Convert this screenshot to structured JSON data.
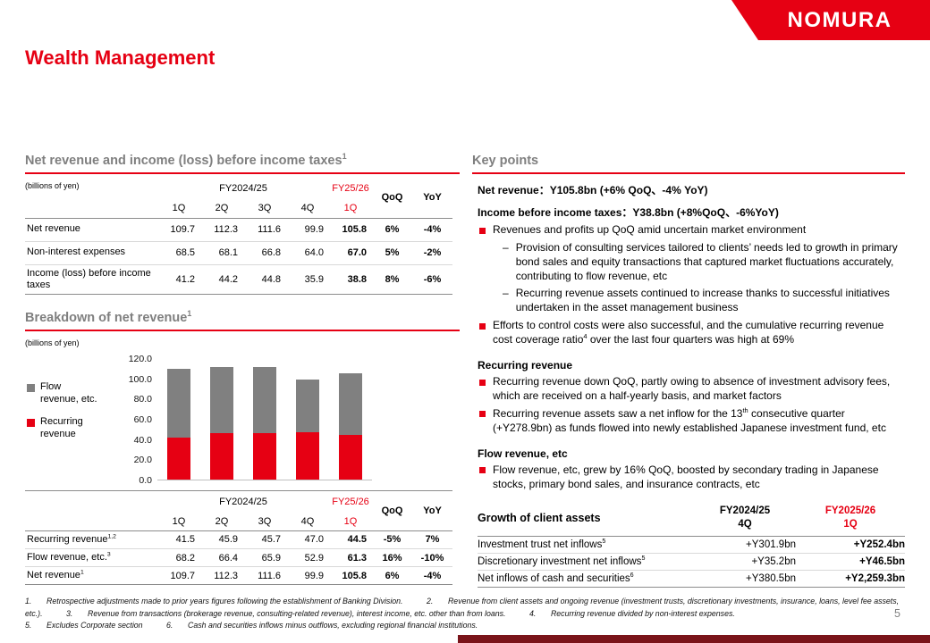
{
  "brand": {
    "logo": "NOMURA",
    "page_number": "5"
  },
  "title": "Wealth Management",
  "colors": {
    "brand_red": "#e60013",
    "heading_gray": "#7f7f7f",
    "bar_gray": "#808080",
    "footer_maroon": "#7a141a"
  },
  "left": {
    "section1": {
      "heading": "Net revenue and income (loss) before income taxes",
      "heading_sup": "1",
      "unit_note": "(billions of yen)",
      "table": {
        "group1": "FY2024/25",
        "group2": "FY25/26",
        "quarters": [
          "1Q",
          "2Q",
          "3Q",
          "4Q"
        ],
        "current_quarter": "1Q",
        "qoq_label": "QoQ",
        "yoy_label": "YoY",
        "rows": [
          {
            "label": "Net revenue",
            "values": [
              "109.7",
              "112.3",
              "111.6",
              "99.9"
            ],
            "current": "105.8",
            "qoq": "6%",
            "yoy": "-4%"
          },
          {
            "label": "Non-interest expenses",
            "values": [
              "68.5",
              "68.1",
              "66.8",
              "64.0"
            ],
            "current": "67.0",
            "qoq": "5%",
            "yoy": "-2%"
          },
          {
            "label": "Income (loss) before income taxes",
            "values": [
              "41.2",
              "44.2",
              "44.8",
              "35.9"
            ],
            "current": "38.8",
            "qoq": "8%",
            "yoy": "-6%"
          }
        ]
      }
    },
    "section2": {
      "heading": "Breakdown of net revenue",
      "heading_sup": "1",
      "unit_note": "(billions of yen)",
      "legend": [
        {
          "label": "Flow revenue, etc.",
          "color": "#808080"
        },
        {
          "label": "Recurring revenue",
          "color": "#e60013"
        }
      ],
      "table": {
        "group1": "FY2024/25",
        "group2": "FY25/26",
        "quarters": [
          "1Q",
          "2Q",
          "3Q",
          "4Q"
        ],
        "current_quarter": "1Q",
        "qoq_label": "QoQ",
        "yoy_label": "YoY",
        "rows": [
          {
            "label": "Recurring revenue",
            "sup": "1,2",
            "values": [
              "41.5",
              "45.9",
              "45.7",
              "47.0"
            ],
            "current": "44.5",
            "qoq": "-5%",
            "yoy": "7%"
          },
          {
            "label": "Flow revenue, etc.",
            "sup": "3",
            "values": [
              "68.2",
              "66.4",
              "65.9",
              "52.9"
            ],
            "current": "61.3",
            "qoq": "16%",
            "yoy": "-10%"
          },
          {
            "label": "Net revenue",
            "sup": "1",
            "values": [
              "109.7",
              "112.3",
              "111.6",
              "99.9"
            ],
            "current": "105.8",
            "qoq": "6%",
            "yoy": "-4%"
          }
        ]
      }
    }
  },
  "chart_data": {
    "type": "bar",
    "stacked": true,
    "title": "Breakdown of net revenue",
    "unit": "billions of yen",
    "categories": [
      "1Q FY2024/25",
      "2Q FY2024/25",
      "3Q FY2024/25",
      "4Q FY2024/25",
      "1Q FY25/26"
    ],
    "series": [
      {
        "name": "Recurring revenue",
        "color": "#e60013",
        "values": [
          41.5,
          45.9,
          45.7,
          47.0,
          44.5
        ]
      },
      {
        "name": "Flow revenue, etc.",
        "color": "#808080",
        "values": [
          68.2,
          66.4,
          65.9,
          52.9,
          61.3
        ]
      }
    ],
    "totals": [
      109.7,
      112.3,
      111.6,
      99.9,
      105.8
    ],
    "ylim": [
      0,
      120
    ],
    "yticks": [
      "120.0",
      "100.0",
      "80.0",
      "60.0",
      "40.0",
      "20.0",
      "0.0"
    ],
    "legend_position": "left",
    "grid": false
  },
  "right": {
    "heading": "Key points",
    "headline1": "Net revenue：Y105.8bn  (+6% QoQ、-4% YoY)",
    "headline2": "Income before income taxes：Y38.8bn  (+8%QoQ、-6%YoY)",
    "dash_glyph": "–",
    "bullet1": "Revenues and profits up QoQ amid uncertain market environment",
    "sub1": "Provision of consulting services tailored to clients’ needs led to growth in primary bond sales and equity transactions that captured market fluctuations accurately, contributing to flow revenue, etc",
    "sub2": "Recurring revenue assets continued to increase thanks to successful initiatives undertaken in the asset management business",
    "bullet2_pre": "Efforts to control costs were also successful, and the cumulative recurring revenue cost coverage ratio",
    "bullet2_sup": "4",
    "bullet2_post": " over the last four quarters was high at 69%",
    "sub_heading1": "Recurring revenue",
    "rr_bullet1": "Recurring revenue down QoQ, partly owing to absence of investment advisory fees, which are received on a half-yearly basis, and market factors",
    "rr_bullet2_pre": "Recurring revenue assets saw a net inflow for the 13",
    "rr_bullet2_sup": "th",
    "rr_bullet2_post": " consecutive quarter (+Y278.9bn) as funds flowed into newly established Japanese investment fund, etc",
    "sub_heading2": "Flow revenue, etc",
    "fr_bullet1": "Flow revenue, etc, grew by 16% QoQ, boosted by secondary trading in Japanese stocks, primary bond sales, and insurance contracts, etc",
    "client_assets": {
      "title": "Growth of client assets",
      "col1_line1": "FY2024/25",
      "col1_line2": "4Q",
      "col2_line1": "FY2025/26",
      "col2_line2": "1Q",
      "rows": [
        {
          "label": "Investment trust net inflows",
          "sup": "5",
          "prev": "+Y301.9bn",
          "current": "+Y252.4bn"
        },
        {
          "label": "Discretionary investment net inflows",
          "sup": "5",
          "prev": "+Y35.2bn",
          "current": "+Y46.5bn"
        },
        {
          "label": "Net inflows of cash and securities",
          "sup": "6",
          "prev": "+Y380.5bn",
          "current": "+Y2,259.3bn"
        }
      ]
    }
  },
  "footnotes": {
    "line1_items": [
      {
        "num": "1.",
        "text": "Retrospective adjustments made to prior years figures following the establishment of Banking Division."
      },
      {
        "num": "2.",
        "text": "Revenue from client assets and ongoing revenue (investment trusts, discretionary investments, insurance, loans, level fee assets, etc.)."
      },
      {
        "num": "3.",
        "text": "Revenue from transactions (brokerage revenue, consulting-related revenue), interest income, etc. other than from loans."
      },
      {
        "num": "4.",
        "text": "Recurring revenue divided by non-interest expenses."
      }
    ],
    "line2_items": [
      {
        "num": "5.",
        "text": "Excludes Corporate section"
      },
      {
        "num": "6.",
        "text": "Cash and securities inflows minus outflows, excluding regional financial institutions."
      }
    ]
  }
}
